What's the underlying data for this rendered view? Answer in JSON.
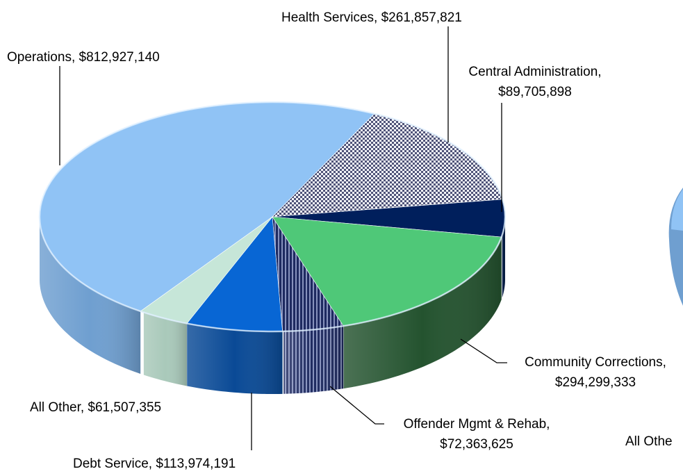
{
  "chart_data": {
    "type": "pie",
    "style": "3d-exploded-tilted",
    "slices": [
      {
        "name": "Operations",
        "value": 812927140,
        "label_lines": [
          "Operations, $812,927,140"
        ],
        "color": "#90c3f5",
        "side": "#6f9fd0",
        "pattern": "none"
      },
      {
        "name": "Health Services",
        "value": 261857821,
        "label_lines": [
          "Health Services, $261,857,821"
        ],
        "color": "#c9cbe0",
        "side": "#5a5e7a",
        "pattern": "checker"
      },
      {
        "name": "Central Administration",
        "value": 89705898,
        "label_lines": [
          "Central Administration,",
          "$89,705,898"
        ],
        "color": "#001f5c",
        "side": "#001740",
        "pattern": "none"
      },
      {
        "name": "Community Corrections",
        "value": 294299333,
        "label_lines": [
          "Community Corrections,",
          "$294,299,333"
        ],
        "color": "#4fc878",
        "side": "#24532f",
        "pattern": "none"
      },
      {
        "name": "Offender Mgmt & Rehab",
        "value": 72363625,
        "label_lines": [
          "Offender Mgmt & Rehab,",
          "$72,363,625"
        ],
        "color": "#3d4a7a",
        "side": "#2a2b45",
        "pattern": "stripes"
      },
      {
        "name": "Debt Service",
        "value": 113974191,
        "label_lines": [
          "Debt Service, $113,974,191"
        ],
        "color": "#0866d4",
        "side": "#0a4a96",
        "pattern": "none"
      },
      {
        "name": "All Other",
        "value": 61507355,
        "label_lines": [
          "All Other, $61,507,355"
        ],
        "color": "#c6e6d8",
        "side": "#a9c9ba",
        "pattern": "none"
      }
    ],
    "partial_labels": [
      "All Othe"
    ]
  }
}
